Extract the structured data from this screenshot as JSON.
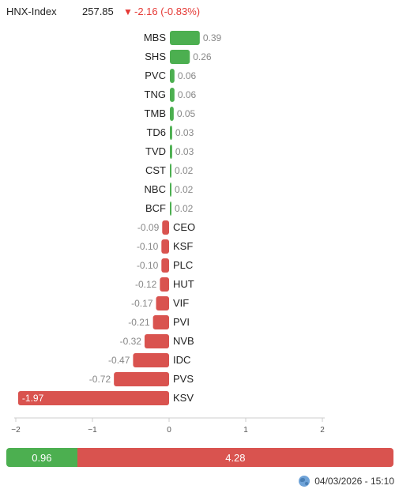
{
  "header": {
    "index_name": "HNX-Index",
    "index_value": "257.85",
    "arrow": "▼",
    "change": "-2.16 (-0.83%)"
  },
  "colors": {
    "up": "#4caf50",
    "down": "#d9534f",
    "text": "#222222",
    "muted": "#888888"
  },
  "chart_data": {
    "type": "bar",
    "orientation": "horizontal",
    "categories": [
      "MBS",
      "SHS",
      "PVC",
      "TNG",
      "TMB",
      "TD6",
      "TVD",
      "CST",
      "NBC",
      "BCF",
      "CEO",
      "KSF",
      "PLC",
      "HUT",
      "VIF",
      "PVI",
      "NVB",
      "IDC",
      "PVS",
      "KSV"
    ],
    "values": [
      0.39,
      0.26,
      0.06,
      0.06,
      0.05,
      0.03,
      0.03,
      0.02,
      0.02,
      0.02,
      -0.09,
      -0.1,
      -0.1,
      -0.12,
      -0.17,
      -0.21,
      -0.32,
      -0.47,
      -0.72,
      -1.97
    ],
    "labels": [
      "0.39",
      "0.26",
      "0.06",
      "0.06",
      "0.05",
      "0.03",
      "0.03",
      "0.02",
      "0.02",
      "0.02",
      "-0.09",
      "-0.10",
      "-0.10",
      "-0.12",
      "-0.17",
      "-0.21",
      "-0.32",
      "-0.47",
      "-0.72",
      "-1.97"
    ],
    "xlim": [
      -2,
      2
    ],
    "xticks": [
      "−2",
      "−1",
      "0",
      "1",
      "2"
    ]
  },
  "summary": {
    "up": "0.96",
    "down": "4.28"
  },
  "footer": {
    "timestamp": "04/03/2026 - 15:10",
    "icon": "globe-icon"
  }
}
